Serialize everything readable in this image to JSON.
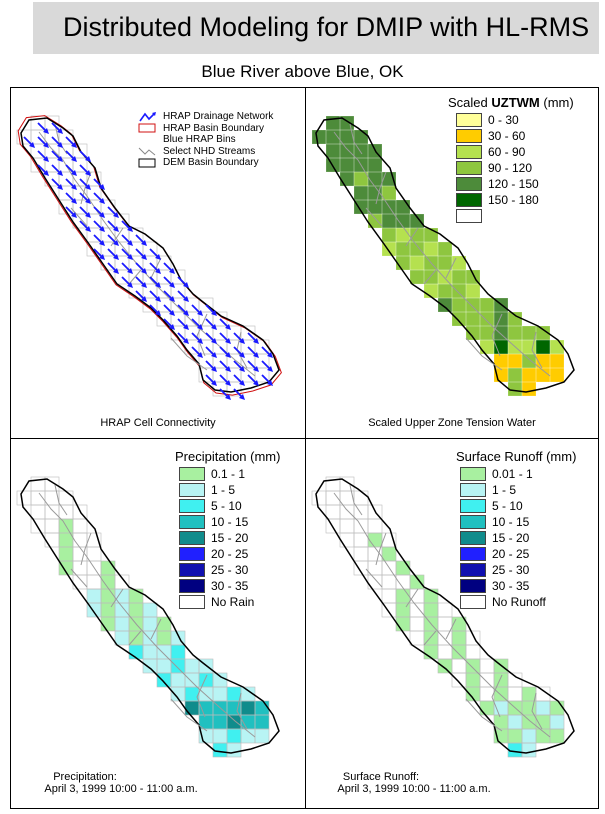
{
  "title": "Distributed Modeling for DMIP with HL-RMS",
  "subtitle": "Blue River above Blue, OK",
  "panels": {
    "connectivity": {
      "caption": "HRAP Cell Connectivity",
      "legend": {
        "items": [
          {
            "icon": "drainage-arrow",
            "label": "HRAP Drainage Network"
          },
          {
            "icon": "red-box",
            "label": "HRAP Basin Boundary"
          },
          {
            "icon": "none",
            "label": "Blue HRAP Bins"
          },
          {
            "icon": "gray-line",
            "label": "Select NHD Streams"
          },
          {
            "icon": "black-box",
            "label": "DEM Basin Boundary"
          }
        ]
      }
    },
    "uztwm": {
      "caption": "Scaled Upper Zone Tension Water",
      "legend_title_prefix": "Scaled ",
      "legend_title_bold": "UZTWM",
      "legend_title_suffix": " (mm)",
      "classes": [
        {
          "label": "0 - 30",
          "color": "#ffff99"
        },
        {
          "label": "30 - 60",
          "color": "#ffcc00"
        },
        {
          "label": "60 - 90",
          "color": "#b5e14f"
        },
        {
          "label": "90 - 120",
          "color": "#8ec63f"
        },
        {
          "label": "120 - 150",
          "color": "#4d8b3a"
        },
        {
          "label": "150 - 180",
          "color": "#006600"
        },
        {
          "label": "",
          "color": "#ffffff"
        }
      ]
    },
    "precip": {
      "caption_line1": "Precipitation:",
      "caption_line2": "April 3, 1999 10:00 - 11:00 a.m.",
      "legend_title": "Precipitation (mm)",
      "classes": [
        {
          "label": "0.1 - 1",
          "color": "#a8f0a0"
        },
        {
          "label": "1 - 5",
          "color": "#b8f4f4"
        },
        {
          "label": "5 - 10",
          "color": "#40f0f0"
        },
        {
          "label": "10 - 15",
          "color": "#20c0c0"
        },
        {
          "label": "15 - 20",
          "color": "#108c8c"
        },
        {
          "label": "20 - 25",
          "color": "#2020ff"
        },
        {
          "label": "25 - 30",
          "color": "#1010b0"
        },
        {
          "label": "30 - 35",
          "color": "#000080"
        },
        {
          "label": "No Rain",
          "color": "#ffffff"
        }
      ]
    },
    "runoff": {
      "caption_line1": "Surface Runoff:",
      "caption_line2": "April 3, 1999 10:00 - 11:00 a.m.",
      "legend_title": "Surface Runoff (mm)",
      "classes": [
        {
          "label": "0.01 - 1",
          "color": "#a8f0a0"
        },
        {
          "label": "1 - 5",
          "color": "#b8f4f4"
        },
        {
          "label": "5 - 10",
          "color": "#40f0f0"
        },
        {
          "label": "10 - 15",
          "color": "#20c0c0"
        },
        {
          "label": "15 - 20",
          "color": "#108c8c"
        },
        {
          "label": "20 - 25",
          "color": "#2020ff"
        },
        {
          "label": "25 - 30",
          "color": "#1010b0"
        },
        {
          "label": "30 - 35",
          "color": "#000080"
        },
        {
          "label": "No Runoff",
          "color": "#ffffff"
        }
      ]
    }
  }
}
